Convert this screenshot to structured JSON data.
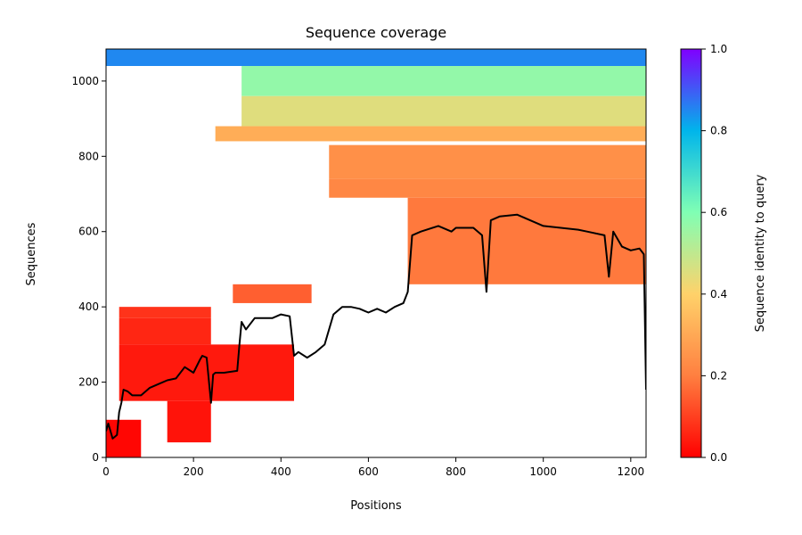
{
  "chart_data": {
    "type": "heatmap",
    "title": "Sequence coverage",
    "xlabel": "Positions",
    "ylabel": "Sequences",
    "xlim": [
      0,
      1235
    ],
    "ylim": [
      0,
      1085
    ],
    "x_ticks": [
      0,
      200,
      400,
      600,
      800,
      1000,
      1200
    ],
    "y_ticks": [
      0,
      200,
      400,
      600,
      800,
      1000
    ],
    "colorbar": {
      "label": "Sequence identity to query",
      "range": [
        0.0,
        1.0
      ],
      "ticks": [
        0.0,
        0.2,
        0.4,
        0.6,
        0.8,
        1.0
      ],
      "colormap": "rainbow_r",
      "colors": [
        "#ff0000",
        "#ff7f40",
        "#ffd26a",
        "#80ffb4",
        "#00b5eb",
        "#8000ff"
      ]
    },
    "coverage_blocks": [
      {
        "y0": 1040,
        "y1": 1085,
        "x0": 0,
        "x1": 1235,
        "identity": 0.85
      },
      {
        "y0": 960,
        "y1": 1040,
        "x0": 310,
        "x1": 1235,
        "identity": 0.57
      },
      {
        "y0": 880,
        "y1": 960,
        "x0": 310,
        "x1": 1235,
        "identity": 0.45
      },
      {
        "y0": 840,
        "y1": 880,
        "x0": 250,
        "x1": 1235,
        "identity": 0.31
      },
      {
        "y0": 740,
        "y1": 830,
        "x0": 510,
        "x1": 1235,
        "identity": 0.24
      },
      {
        "y0": 690,
        "y1": 740,
        "x0": 510,
        "x1": 1235,
        "identity": 0.22
      },
      {
        "y0": 460,
        "y1": 690,
        "x0": 690,
        "x1": 1235,
        "identity": 0.19
      },
      {
        "y0": 410,
        "y1": 460,
        "x0": 290,
        "x1": 470,
        "identity": 0.15
      },
      {
        "y0": 370,
        "y1": 400,
        "x0": 30,
        "x1": 240,
        "identity": 0.08
      },
      {
        "y0": 300,
        "y1": 370,
        "x0": 30,
        "x1": 240,
        "identity": 0.06
      },
      {
        "y0": 150,
        "y1": 300,
        "x0": 30,
        "x1": 430,
        "identity": 0.04
      },
      {
        "y0": 40,
        "y1": 150,
        "x0": 140,
        "x1": 240,
        "identity": 0.03
      },
      {
        "y0": 0,
        "y1": 100,
        "x0": 0,
        "x1": 80,
        "identity": 0.01
      }
    ],
    "series": [
      {
        "x": [
          0,
          5,
          15,
          25,
          30,
          35,
          40,
          50,
          60,
          80,
          100,
          120,
          140,
          160,
          180,
          200,
          215,
          220,
          230,
          240,
          245,
          250,
          270,
          300,
          305,
          310,
          320,
          340,
          360,
          380,
          400,
          420,
          430,
          440,
          460,
          480,
          500,
          520,
          540,
          560,
          580,
          590,
          600,
          620,
          640,
          660,
          680,
          690,
          700,
          720,
          760,
          790,
          800,
          840,
          860,
          870,
          880,
          900,
          940,
          980,
          1000,
          1040,
          1080,
          1100,
          1140,
          1150,
          1160,
          1180,
          1200,
          1220,
          1230,
          1235
        ],
        "y": [
          70,
          90,
          50,
          60,
          120,
          145,
          180,
          175,
          165,
          165,
          185,
          195,
          205,
          210,
          240,
          225,
          260,
          270,
          265,
          145,
          220,
          225,
          225,
          230,
          300,
          360,
          340,
          370,
          370,
          370,
          380,
          375,
          270,
          280,
          265,
          280,
          300,
          380,
          400,
          400,
          395,
          390,
          385,
          395,
          385,
          400,
          410,
          440,
          590,
          600,
          615,
          600,
          610,
          610,
          590,
          440,
          630,
          640,
          645,
          625,
          615,
          610,
          605,
          600,
          590,
          480,
          600,
          560,
          550,
          555,
          540,
          180
        ]
      }
    ]
  }
}
